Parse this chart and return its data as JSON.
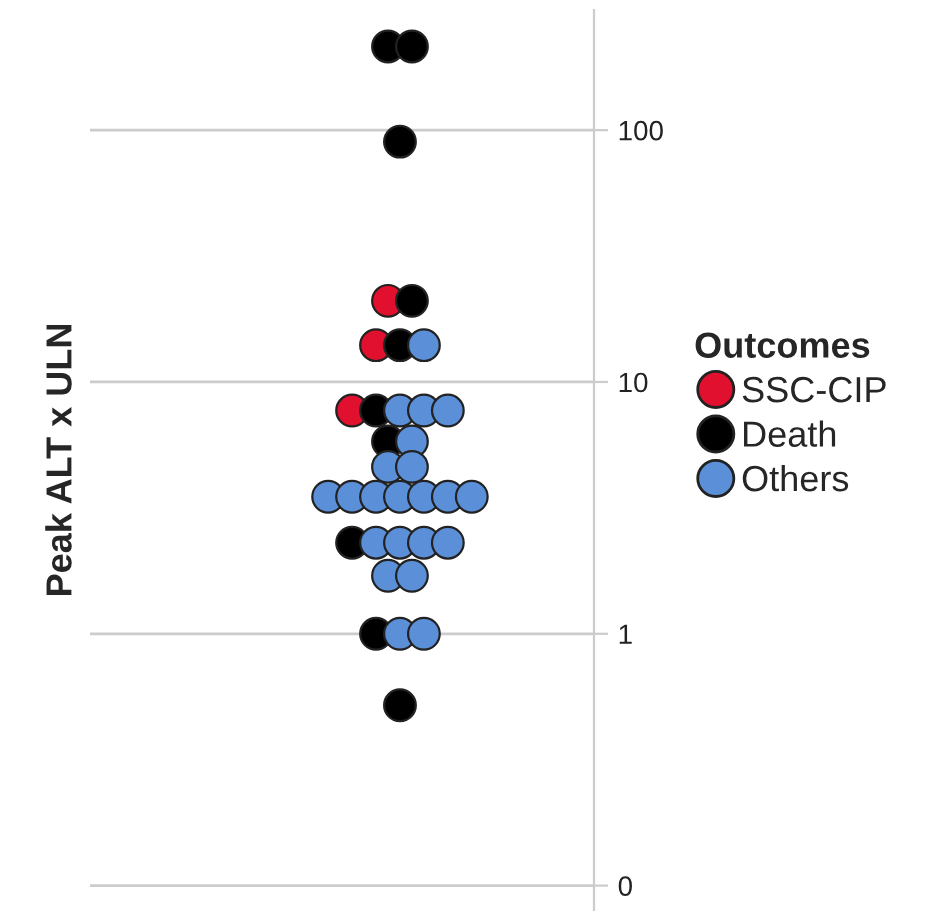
{
  "chart_data": {
    "type": "scatter",
    "ylabel": "Peak ALT x ULN",
    "legend_title": "Outcomes",
    "categories": [
      null
    ],
    "log": true,
    "ylim": [
      0.08,
      300
    ],
    "yticks": [
      {
        "value": 0.1,
        "label": "0"
      },
      1,
      10,
      100
    ],
    "grid": "y",
    "legend": "right",
    "marker": "circle",
    "tick_labels": "y",
    "series": [
      {
        "name": "SSC-CIP",
        "color": "#e0102e",
        "x": [
          null,
          null,
          null
        ],
        "values": [
          21,
          14,
          7.7
        ]
      },
      {
        "name": "Death",
        "color": "#000000",
        "x": [
          null,
          null,
          null,
          null,
          null,
          null,
          null,
          null,
          null,
          null
        ],
        "values": [
          215,
          215,
          90,
          21,
          14,
          7.7,
          5.8,
          2.3,
          1.0,
          0.52
        ]
      },
      {
        "name": "Others",
        "color": "#5b8fd8",
        "x": [
          null,
          null,
          null,
          null,
          null,
          null,
          null,
          null,
          null,
          null,
          null,
          null,
          null,
          null,
          null,
          null,
          null,
          null,
          null,
          null,
          null,
          null
        ],
        "values": [
          14,
          7.7,
          7.7,
          7.7,
          5.8,
          4.6,
          4.6,
          3.5,
          3.5,
          3.5,
          3.5,
          3.5,
          3.5,
          3.5,
          2.3,
          2.3,
          2.3,
          2.3,
          1.7,
          1.7,
          1.0,
          1.0
        ]
      }
    ]
  }
}
